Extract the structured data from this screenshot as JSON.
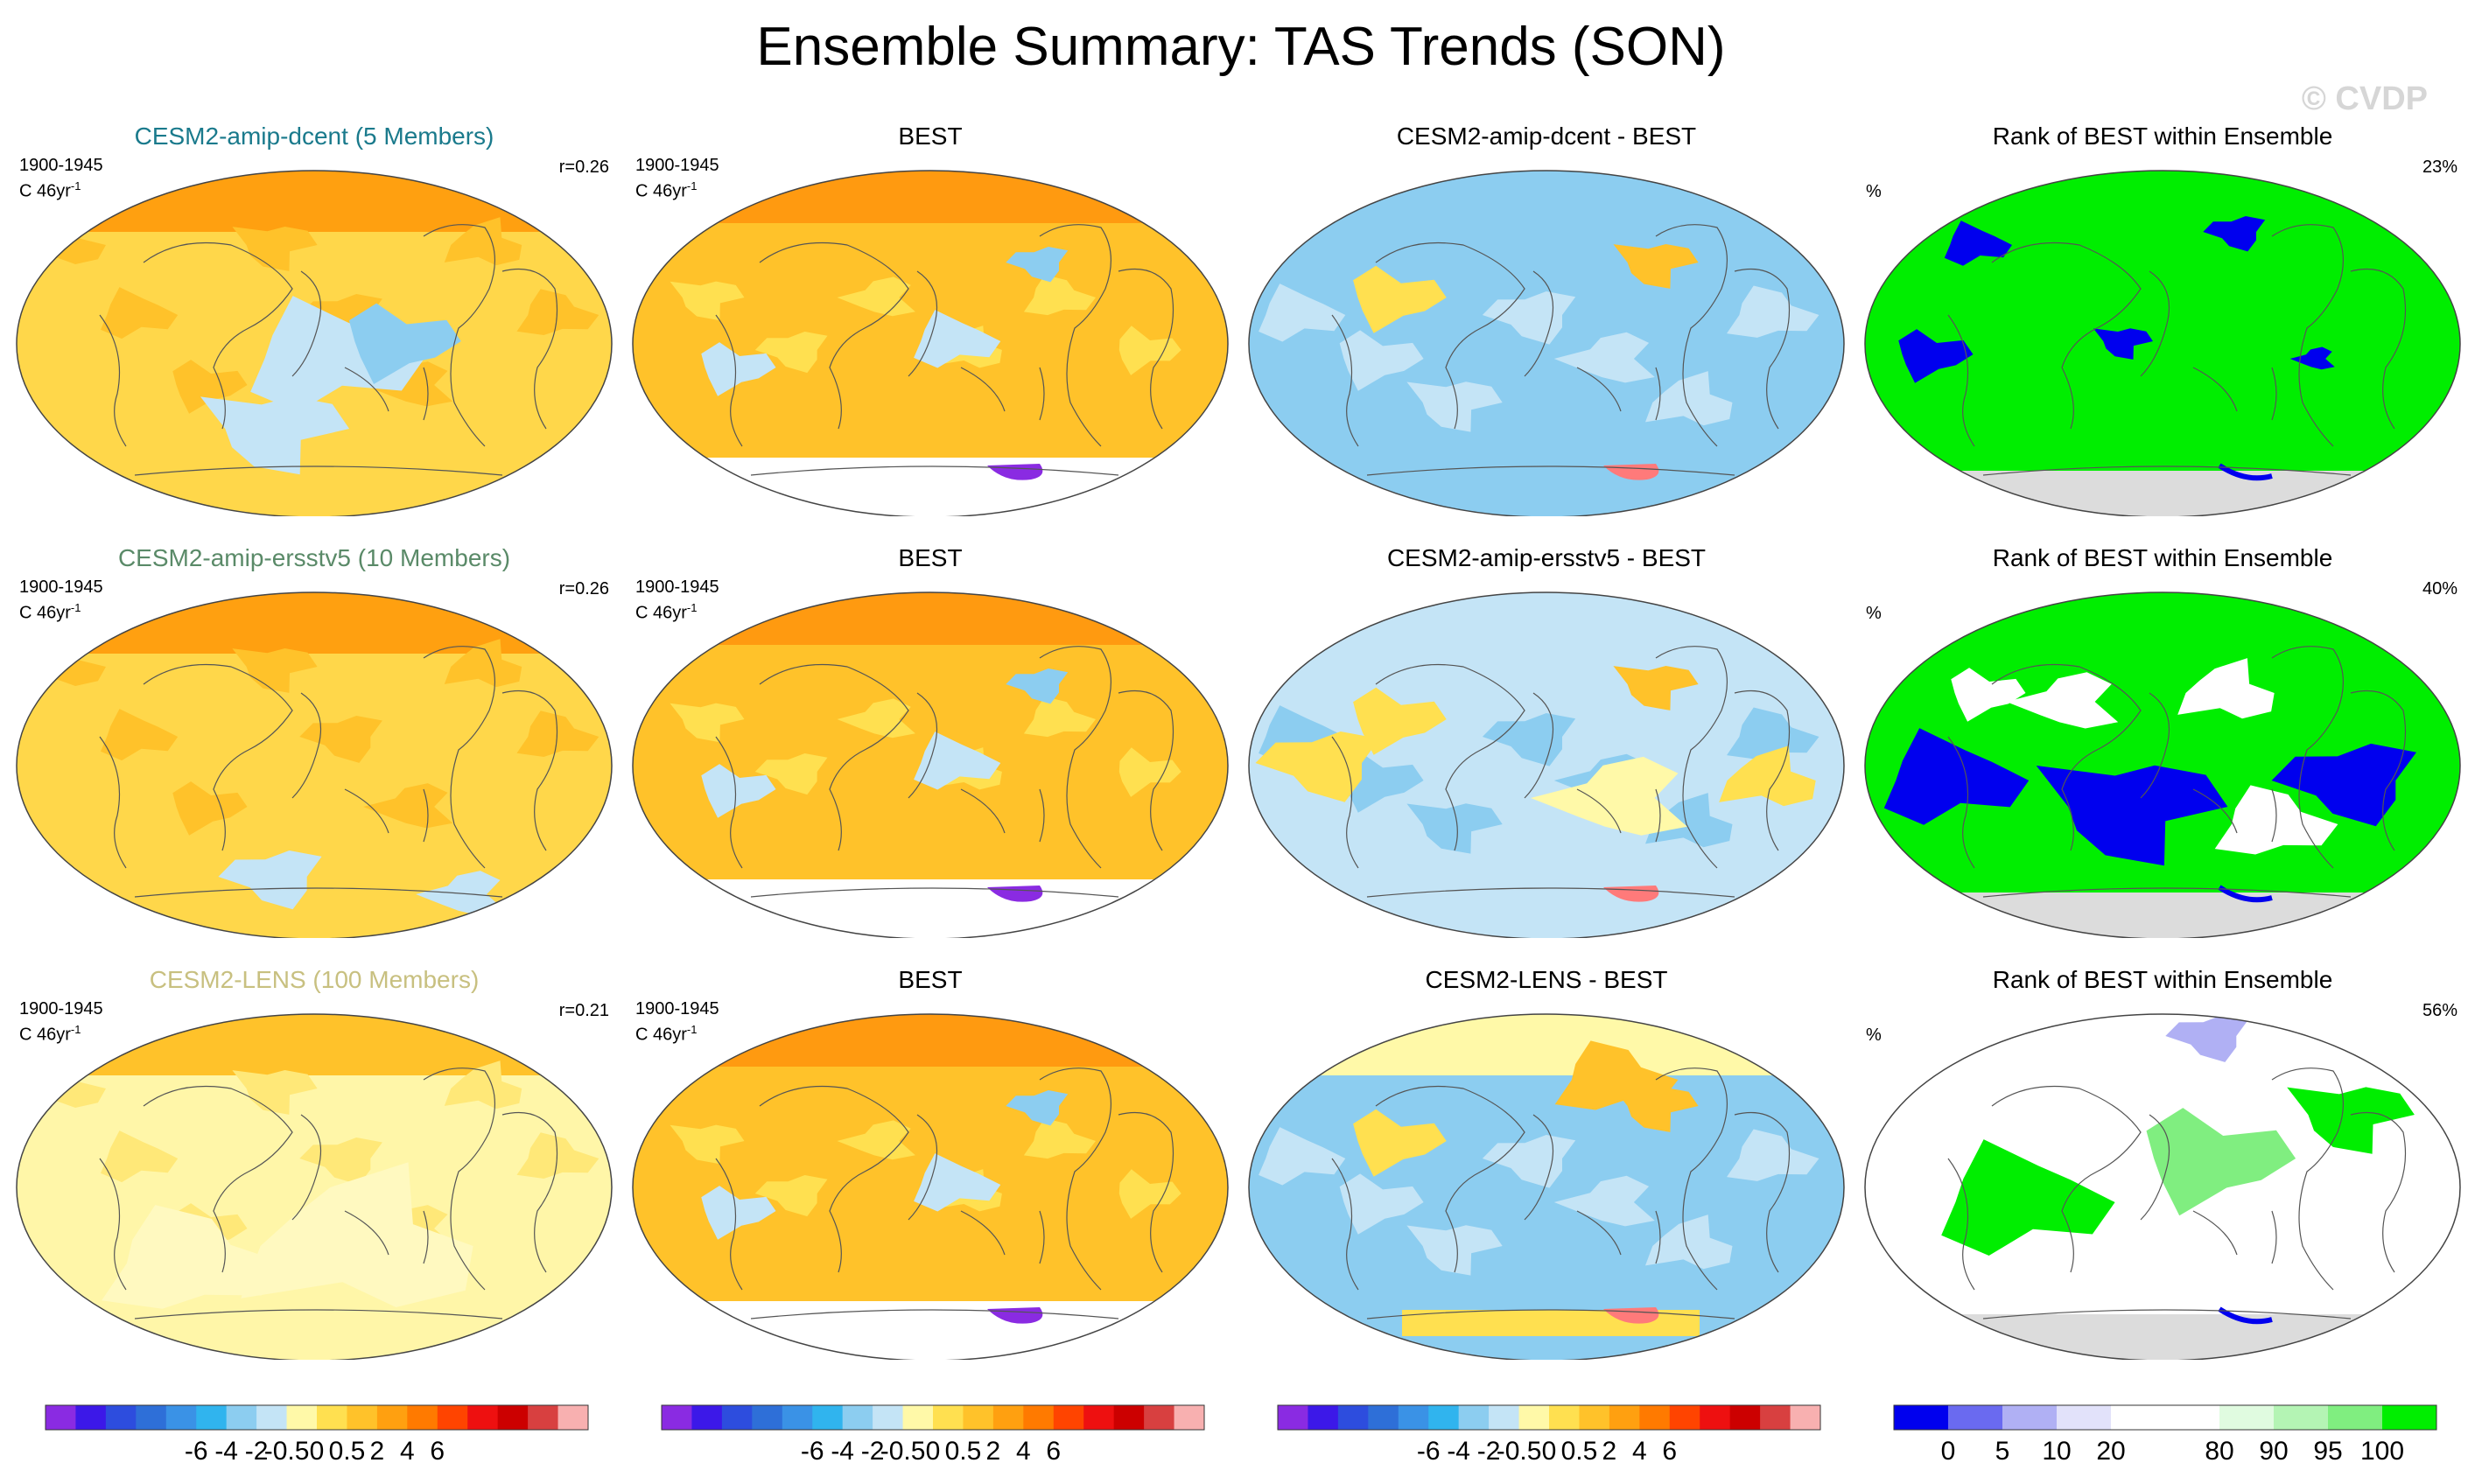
{
  "title": "Ensemble Summary: TAS Trends (SON)",
  "watermark": "© CVDP",
  "panels": [
    {
      "row": 0,
      "col": 0,
      "type": "model",
      "title": "CESM2-amip-dcent (5 Members)",
      "title_color": "#1a7a8c",
      "period": "1900-1945",
      "units_line": "C 46yr",
      "units_exp": "-1",
      "r_value": "r=0.26"
    },
    {
      "row": 0,
      "col": 1,
      "type": "obs",
      "title": "BEST",
      "title_color": "#000000",
      "period": "1900-1945",
      "units_line": "C 46yr",
      "units_exp": "-1"
    },
    {
      "row": 0,
      "col": 2,
      "type": "diff",
      "title": "CESM2-amip-dcent - BEST",
      "title_color": "#000000"
    },
    {
      "row": 0,
      "col": 3,
      "type": "rank",
      "title": "Rank of BEST within Ensemble",
      "title_color": "#000000",
      "pct_symbol": "%",
      "pct_value": "23%"
    },
    {
      "row": 1,
      "col": 0,
      "type": "model",
      "title": "CESM2-amip-ersstv5 (10 Members)",
      "title_color": "#5a8a68",
      "period": "1900-1945",
      "units_line": "C 46yr",
      "units_exp": "-1",
      "r_value": "r=0.26"
    },
    {
      "row": 1,
      "col": 1,
      "type": "obs",
      "title": "BEST",
      "title_color": "#000000",
      "period": "1900-1945",
      "units_line": "C 46yr",
      "units_exp": "-1"
    },
    {
      "row": 1,
      "col": 2,
      "type": "diff",
      "title": "CESM2-amip-ersstv5 - BEST",
      "title_color": "#000000"
    },
    {
      "row": 1,
      "col": 3,
      "type": "rank",
      "title": "Rank of BEST within Ensemble",
      "title_color": "#000000",
      "pct_symbol": "%",
      "pct_value": "40%"
    },
    {
      "row": 2,
      "col": 0,
      "type": "model",
      "title": "CESM2-LENS (100 Members)",
      "title_color": "#c8c080",
      "period": "1900-1945",
      "units_line": "C 46yr",
      "units_exp": "-1",
      "r_value": "r=0.21"
    },
    {
      "row": 2,
      "col": 1,
      "type": "obs",
      "title": "BEST",
      "title_color": "#000000",
      "period": "1900-1945",
      "units_line": "C 46yr",
      "units_exp": "-1"
    },
    {
      "row": 2,
      "col": 2,
      "type": "diff",
      "title": "CESM2-LENS - BEST",
      "title_color": "#000000"
    },
    {
      "row": 2,
      "col": 3,
      "type": "rank",
      "title": "Rank of BEST within Ensemble",
      "title_color": "#000000",
      "pct_symbol": "%",
      "pct_value": "56%"
    }
  ],
  "chart_data": {
    "type": "heatmap",
    "title": "Ensemble Summary: TAS Trends (SON)",
    "variable": "TAS",
    "season": "SON",
    "period": "1900-1945",
    "units": "C 46yr-1",
    "pattern_correlations": {
      "CESM2-amip-dcent": 0.26,
      "CESM2-amip-ersstv5": 0.26,
      "CESM2-LENS": 0.21
    },
    "rank_percent_values": {
      "CESM2-amip-dcent": 23,
      "CESM2-amip-ersstv5": 40,
      "CESM2-LENS": 56
    },
    "colorbars": [
      {
        "name": "trend",
        "labels": [
          "-6",
          "-4",
          "-2",
          "-0.5",
          "0",
          "0.5",
          "2",
          "4",
          "6"
        ],
        "colors": [
          "#8a2be2",
          "#3c18e8",
          "#2d4dde",
          "#2e6fd8",
          "#3a92e6",
          "#30b4ee",
          "#8ccdf0",
          "#c4e4f6",
          "#fff9a8",
          "#ffe050",
          "#ffc22a",
          "#ffa010",
          "#ff7a00",
          "#ff4400",
          "#ee1010",
          "#cc0000",
          "#d84040",
          "#f8b0b0"
        ]
      },
      {
        "name": "trend",
        "labels": [
          "-6",
          "-4",
          "-2",
          "-0.5",
          "0",
          "0.5",
          "2",
          "4",
          "6"
        ],
        "colors": [
          "#8a2be2",
          "#3c18e8",
          "#2d4dde",
          "#2e6fd8",
          "#3a92e6",
          "#30b4ee",
          "#8ccdf0",
          "#c4e4f6",
          "#fff9a8",
          "#ffe050",
          "#ffc22a",
          "#ffa010",
          "#ff7a00",
          "#ff4400",
          "#ee1010",
          "#cc0000",
          "#d84040",
          "#f8b0b0"
        ]
      },
      {
        "name": "difference",
        "labels": [
          "-6",
          "-4",
          "-2",
          "-0.5",
          "0",
          "0.5",
          "2",
          "4",
          "6"
        ],
        "colors": [
          "#8a2be2",
          "#3c18e8",
          "#2d4dde",
          "#2e6fd8",
          "#3a92e6",
          "#30b4ee",
          "#8ccdf0",
          "#c4e4f6",
          "#fff9a8",
          "#ffe050",
          "#ffc22a",
          "#ffa010",
          "#ff7a00",
          "#ff4400",
          "#ee1010",
          "#cc0000",
          "#d84040",
          "#f8b0b0"
        ]
      },
      {
        "name": "rank",
        "labels": [
          "0",
          "5",
          "10",
          "20",
          "80",
          "90",
          "95",
          "100"
        ],
        "colors": [
          "#0000ee",
          "#6a6af0",
          "#b0b0f4",
          "#e2e2fa",
          "#ffffff",
          "#ffffff",
          "#e0fbe0",
          "#b4f4b4",
          "#80ee80",
          "#00ee00"
        ]
      }
    ]
  }
}
